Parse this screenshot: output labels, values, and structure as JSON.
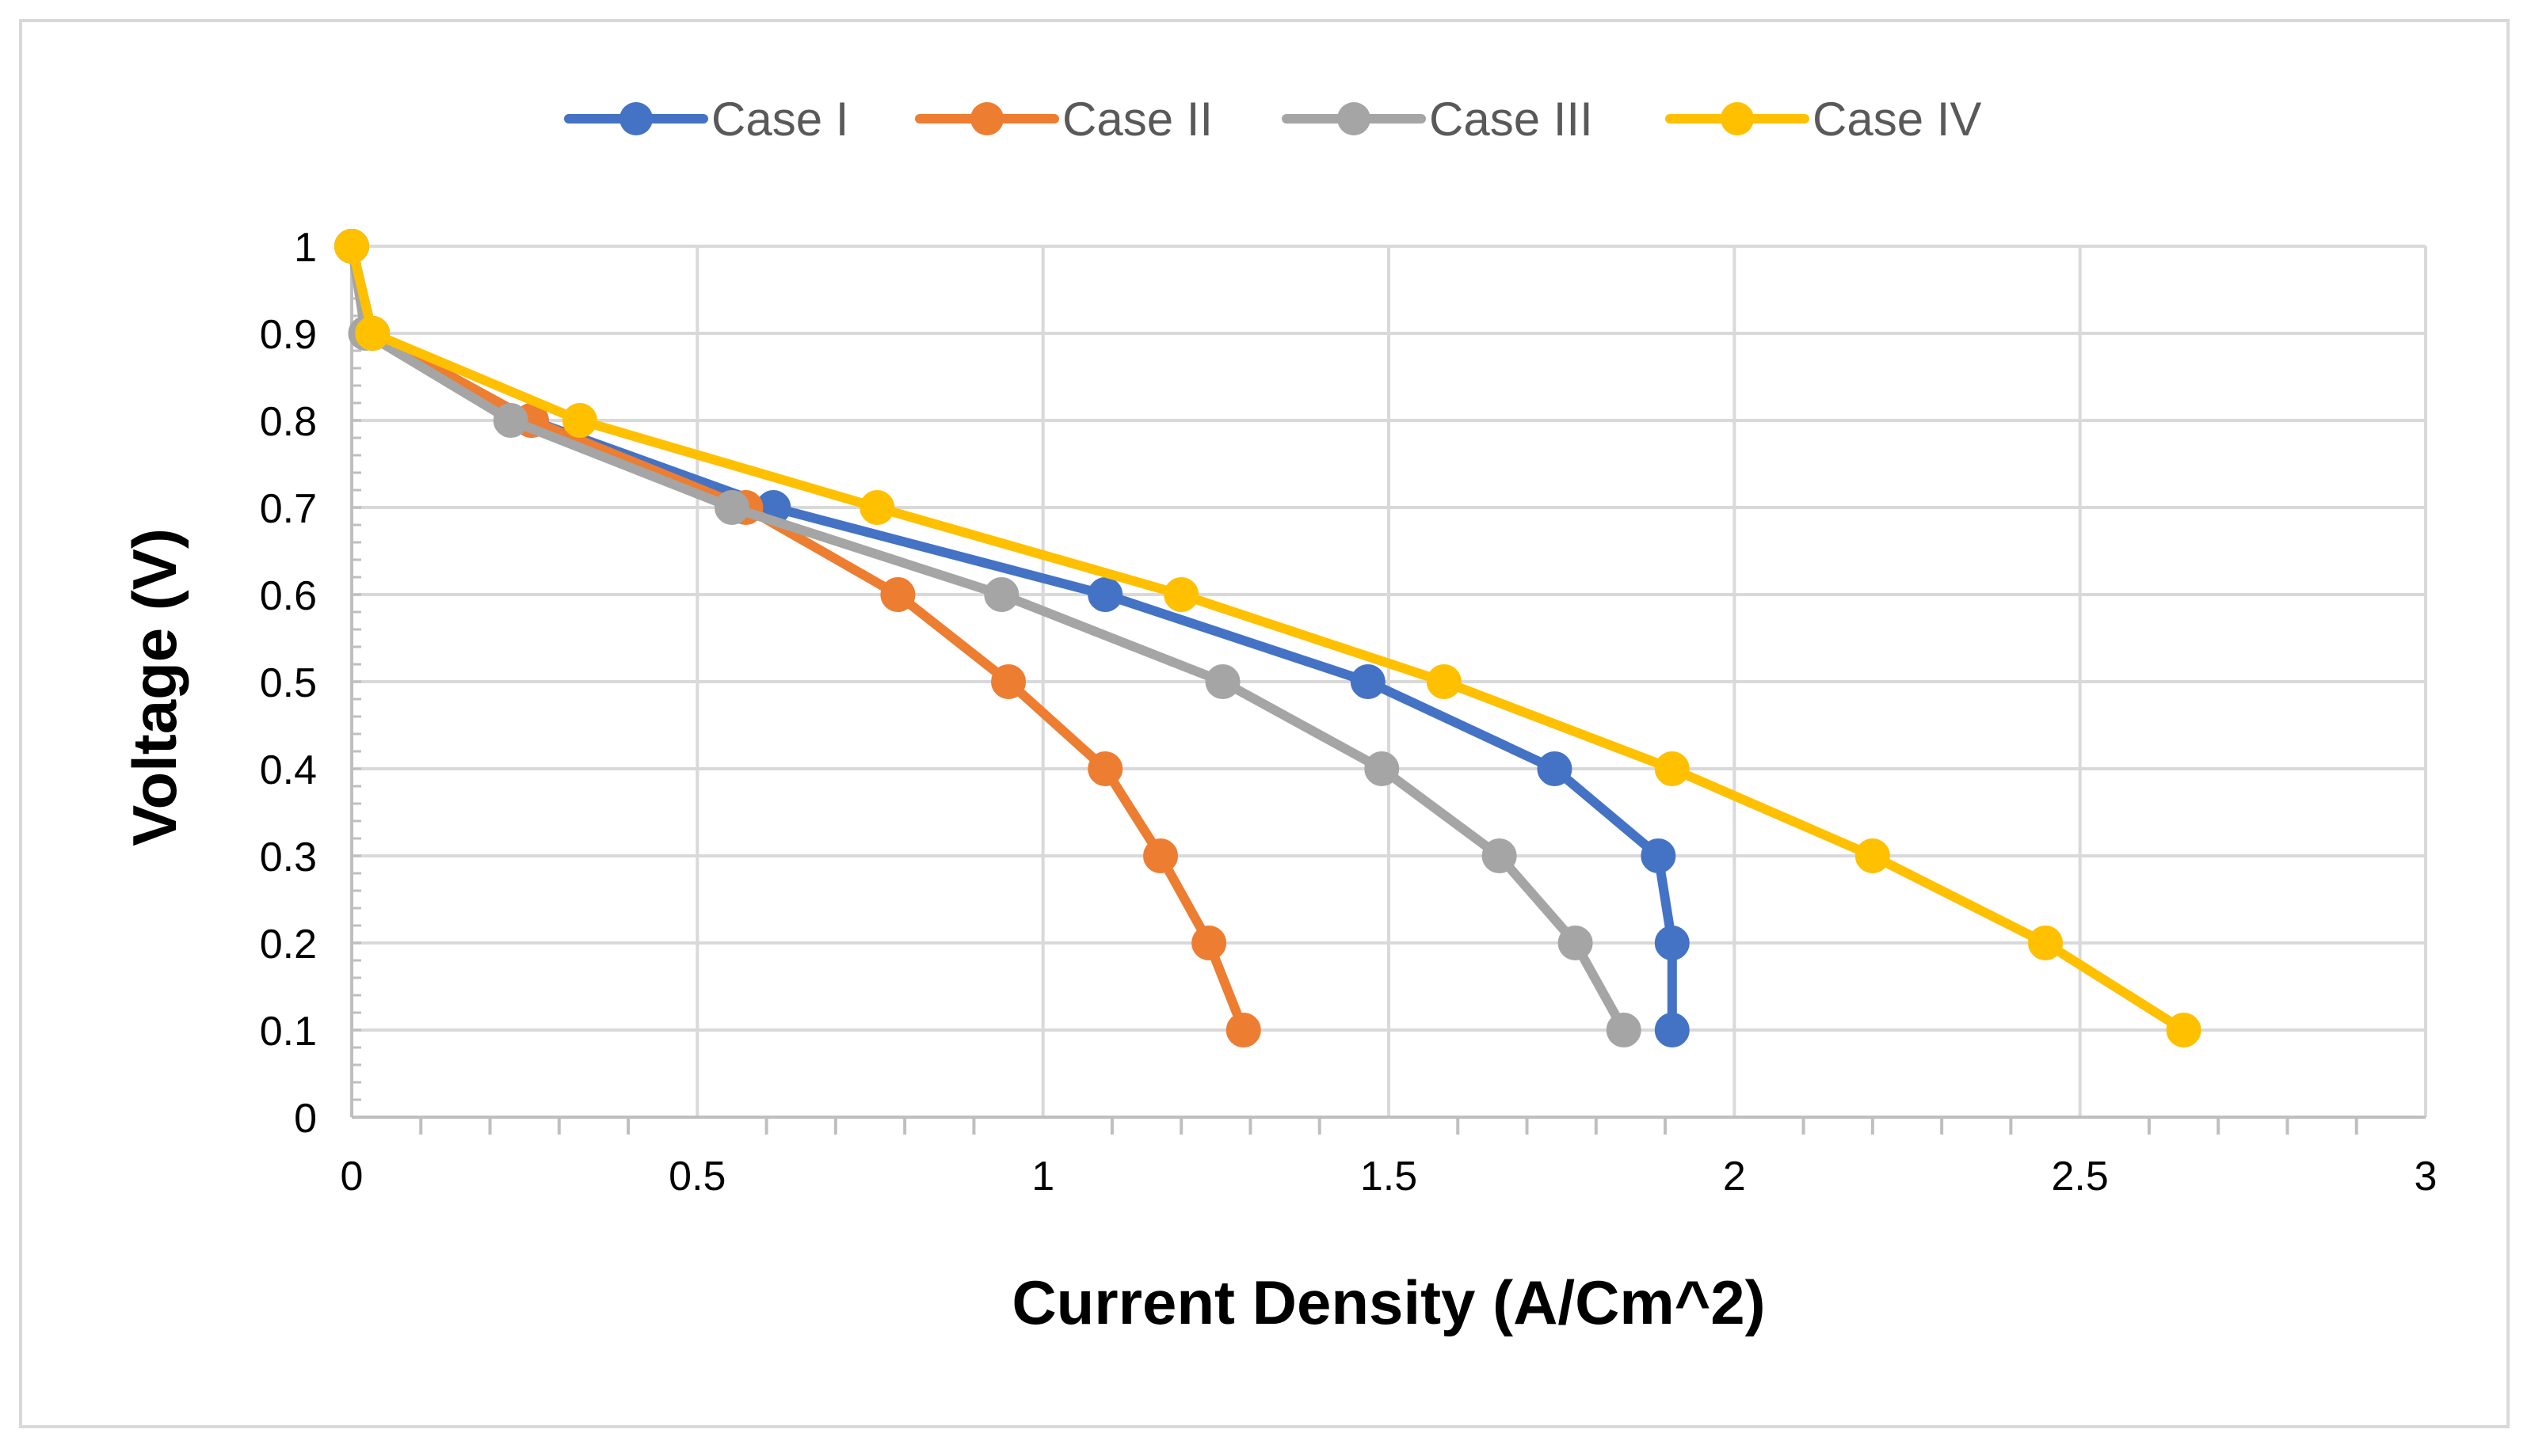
{
  "chart_data": {
    "type": "line",
    "title": "",
    "xlabel": "Current Density (A/Cm^2)",
    "ylabel": "Voltage (V)",
    "xlim": [
      0,
      3
    ],
    "ylim": [
      0,
      1
    ],
    "x_ticks": [
      "0",
      "0.5",
      "1",
      "1.5",
      "2",
      "2.5",
      "3"
    ],
    "y_ticks": [
      "0",
      "0.1",
      "0.2",
      "0.3",
      "0.4",
      "0.5",
      "0.6",
      "0.7",
      "0.8",
      "0.9",
      "1"
    ],
    "grid": true,
    "legend_position": "top",
    "markers": "circle",
    "series": [
      {
        "name": "Case I",
        "color": "#4472C4",
        "points": [
          [
            0,
            1
          ],
          [
            0.03,
            0.9
          ],
          [
            0.26,
            0.8
          ],
          [
            0.61,
            0.7
          ],
          [
            1.09,
            0.6
          ],
          [
            1.47,
            0.5
          ],
          [
            1.74,
            0.4
          ],
          [
            1.89,
            0.3
          ],
          [
            1.91,
            0.2
          ],
          [
            1.91,
            0.1
          ]
        ]
      },
      {
        "name": "Case II",
        "color": "#ED7D31",
        "points": [
          [
            0,
            1
          ],
          [
            0.03,
            0.9
          ],
          [
            0.26,
            0.8
          ],
          [
            0.57,
            0.7
          ],
          [
            0.79,
            0.6
          ],
          [
            0.95,
            0.5
          ],
          [
            1.09,
            0.4
          ],
          [
            1.17,
            0.3
          ],
          [
            1.24,
            0.2
          ],
          [
            1.29,
            0.1
          ]
        ]
      },
      {
        "name": "Case III",
        "color": "#A5A5A5",
        "points": [
          [
            0,
            1
          ],
          [
            0.02,
            0.9
          ],
          [
            0.23,
            0.8
          ],
          [
            0.55,
            0.7
          ],
          [
            0.94,
            0.6
          ],
          [
            1.26,
            0.5
          ],
          [
            1.49,
            0.4
          ],
          [
            1.66,
            0.3
          ],
          [
            1.77,
            0.2
          ],
          [
            1.84,
            0.1
          ]
        ]
      },
      {
        "name": "Case IV",
        "color": "#FFC000",
        "points": [
          [
            0,
            1
          ],
          [
            0.03,
            0.9
          ],
          [
            0.33,
            0.8
          ],
          [
            0.76,
            0.7
          ],
          [
            1.2,
            0.6
          ],
          [
            1.58,
            0.5
          ],
          [
            1.91,
            0.4
          ],
          [
            2.2,
            0.3
          ],
          [
            2.45,
            0.2
          ],
          [
            2.65,
            0.1
          ]
        ]
      }
    ]
  }
}
